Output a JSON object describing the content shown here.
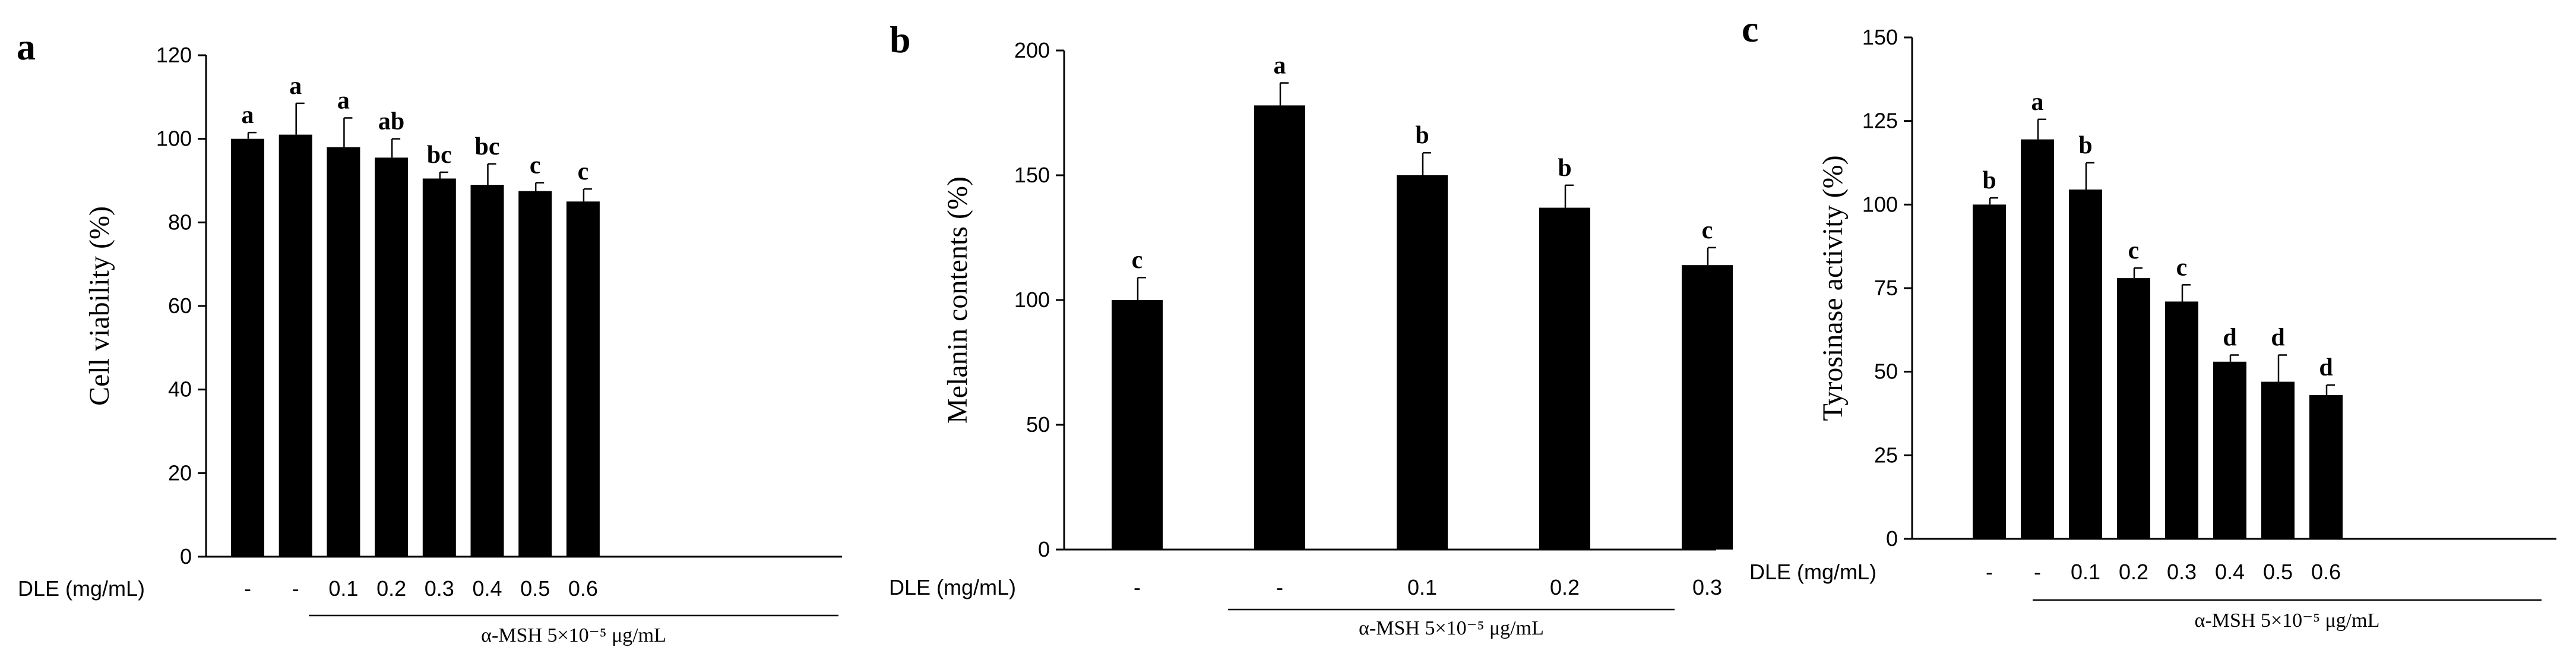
{
  "chart_data": [
    {
      "type": "bar",
      "panel": "a",
      "ylabel": "Cell  viability (%)",
      "ylim": [
        0,
        120
      ],
      "yticks": [
        0,
        20,
        40,
        60,
        80,
        100,
        120
      ],
      "xlabel_prefix": "DLE (mg/mL)",
      "categories": [
        "-",
        "-",
        "0.1",
        "0.2",
        "0.3",
        "0.4",
        "0.5",
        "0.6"
      ],
      "values": [
        100,
        101,
        98,
        95.5,
        90.5,
        89,
        87.5,
        85
      ],
      "errors": [
        1.5,
        7.5,
        7,
        4.5,
        1.5,
        5,
        2,
        3
      ],
      "letters": [
        "a",
        "a",
        "a",
        "ab",
        "bc",
        "bc",
        "c",
        "c"
      ],
      "treatment_label": "α-MSH  5×10⁻⁵ μg/mL",
      "treatment_span": [
        1,
        7
      ],
      "color": "#000000"
    },
    {
      "type": "bar",
      "panel": "b",
      "ylabel": "Melanin contents (%)",
      "ylim": [
        0,
        200
      ],
      "yticks": [
        0,
        50,
        100,
        150,
        200
      ],
      "xlabel_prefix": "DLE (mg/mL)",
      "categories": [
        "-",
        "-",
        "0.1",
        "0.2",
        "0.3"
      ],
      "values": [
        100,
        178,
        150,
        137,
        114
      ],
      "errors": [
        9,
        9,
        9,
        9,
        7
      ],
      "letters": [
        "c",
        "a",
        "b",
        "b",
        "c"
      ],
      "treatment_label": "α-MSH  5×10⁻⁵ μg/mL",
      "treatment_span": [
        1,
        4
      ],
      "color": "#000000"
    },
    {
      "type": "bar",
      "panel": "c",
      "ylabel": "Tyrosinase activity (%)",
      "ylim": [
        0,
        150
      ],
      "yticks": [
        0,
        25,
        50,
        75,
        100,
        125,
        150
      ],
      "xlabel_prefix": "DLE (mg/mL)",
      "categories": [
        "-",
        "-",
        "0.1",
        "0.2",
        "0.3",
        "0.4",
        "0.5",
        "0.6"
      ],
      "values": [
        100,
        119.5,
        104.5,
        78,
        71,
        53,
        47,
        43
      ],
      "errors": [
        2,
        6,
        8,
        3,
        5,
        2,
        8,
        3
      ],
      "letters": [
        "b",
        "a",
        "b",
        "c",
        "c",
        "d",
        "d",
        "d"
      ],
      "treatment_label": "α-MSH  5×10⁻⁵ μg/mL",
      "treatment_span": [
        1,
        7
      ],
      "color": "#000000"
    }
  ]
}
